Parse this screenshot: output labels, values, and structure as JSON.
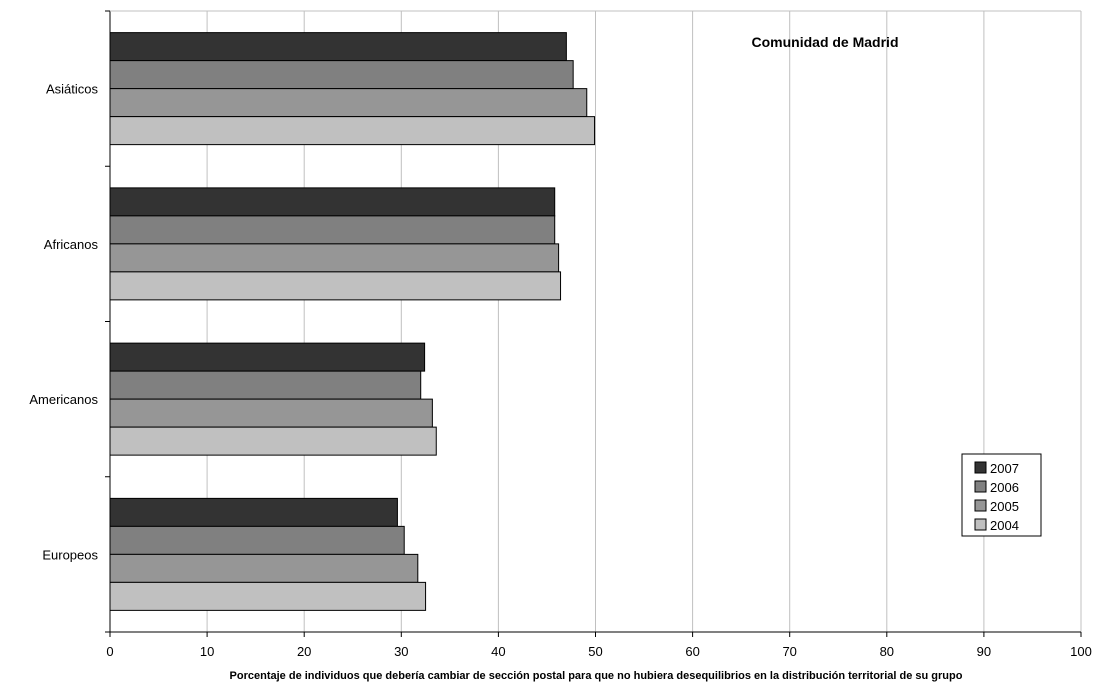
{
  "chart_data": {
    "type": "bar",
    "orientation": "horizontal",
    "title": "Comunidad de Madrid",
    "xlabel": "Porcentaje de individuos que debería cambiar de sección postal para que no hubiera desequilibrios en la distribución territorial de su grupo",
    "ylabel": "",
    "xlim": [
      0,
      100
    ],
    "x_ticks": [
      "0",
      "10",
      "20",
      "30",
      "40",
      "50",
      "60",
      "70",
      "80",
      "90",
      "100"
    ],
    "grid": "vertical",
    "legend_position": "right",
    "categories": [
      "Asiáticos",
      "Africanos",
      "Americanos",
      "Europeos"
    ],
    "series": [
      {
        "name": "2007",
        "color": "#333333",
        "values": [
          47.0,
          45.8,
          32.4,
          29.6
        ]
      },
      {
        "name": "2006",
        "color": "#808080",
        "values": [
          47.7,
          45.8,
          32.0,
          30.3
        ]
      },
      {
        "name": "2005",
        "color": "#969696",
        "values": [
          49.1,
          46.2,
          33.2,
          31.7
        ]
      },
      {
        "name": "2004",
        "color": "#c0c0c0",
        "values": [
          49.9,
          46.4,
          33.6,
          32.5
        ]
      }
    ]
  }
}
